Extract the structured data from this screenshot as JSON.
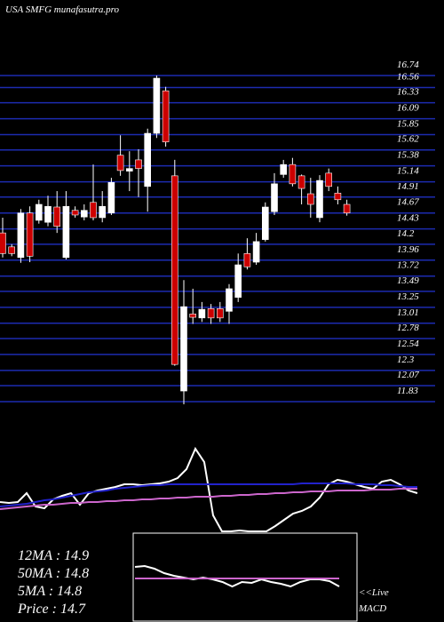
{
  "chart_data": {
    "type": "candlestick",
    "title": "USA SMFG munafasutra.pro",
    "ylim": [
      11.83,
      16.74
    ],
    "yticks": [
      16.74,
      16.56,
      16.33,
      16.09,
      15.85,
      15.62,
      15.38,
      15.14,
      14.91,
      14.67,
      14.43,
      14.2,
      13.96,
      13.72,
      13.49,
      13.25,
      13.01,
      12.78,
      12.54,
      12.3,
      12.07,
      11.83
    ],
    "grid": true,
    "grid_color": "#1c2bb0",
    "up_color": "#ffffff",
    "down_color": "#cc0000",
    "open": [
      14.37,
      14.16,
      14.0,
      14.67,
      14.56,
      14.53,
      14.76,
      14.0,
      14.71,
      14.61,
      14.83,
      14.6,
      14.67,
      15.54,
      15.3,
      15.47,
      15.07,
      15.87,
      16.51,
      15.23,
      11.99,
      13.15,
      13.09,
      13.23,
      13.23,
      13.19,
      13.4,
      14.06,
      13.93,
      14.27,
      14.69,
      15.25,
      15.4,
      15.23,
      14.96,
      14.6,
      15.27,
      14.97,
      14.8
    ],
    "high": [
      14.6,
      14.2,
      14.73,
      14.77,
      14.87,
      14.93,
      15.0,
      15.0,
      14.77,
      14.8,
      15.4,
      15.0,
      15.2,
      15.84,
      15.6,
      15.63,
      15.94,
      16.74,
      16.57,
      15.47,
      13.66,
      13.53,
      13.33,
      13.3,
      13.33,
      13.6,
      14.06,
      14.29,
      14.37,
      14.83,
      15.27,
      15.47,
      15.5,
      15.25,
      15.2,
      15.24,
      15.34,
      15.07,
      14.87
    ],
    "low": [
      14.0,
      14.02,
      13.92,
      13.93,
      14.51,
      14.47,
      14.37,
      13.97,
      14.6,
      14.56,
      14.56,
      14.53,
      14.64,
      15.23,
      15.0,
      14.91,
      14.69,
      15.8,
      15.67,
      12.37,
      11.79,
      13.0,
      13.03,
      13.0,
      13.03,
      13.0,
      13.33,
      13.82,
      13.89,
      14.24,
      14.64,
      15.2,
      15.07,
      14.8,
      14.6,
      14.53,
      15.0,
      14.8,
      14.63
    ],
    "close": [
      14.06,
      14.06,
      14.67,
      14.02,
      14.8,
      14.77,
      14.47,
      14.77,
      14.64,
      14.71,
      14.6,
      14.77,
      15.13,
      15.31,
      15.34,
      15.34,
      15.87,
      16.7,
      15.74,
      12.39,
      13.26,
      13.1,
      13.22,
      13.09,
      13.09,
      13.53,
      13.89,
      13.86,
      14.24,
      14.76,
      15.11,
      15.4,
      15.11,
      15.04,
      14.8,
      15.16,
      15.07,
      14.87,
      14.67
    ],
    "indicator_ylim": [
      0,
      100
    ],
    "indicators": [
      {
        "color": "#ffffff",
        "values": [
          35,
          34,
          35,
          45,
          30,
          28,
          38,
          42,
          45,
          32,
          45,
          48,
          50,
          52,
          55,
          55,
          54,
          55,
          56,
          58,
          62,
          72,
          95,
          80,
          20,
          2,
          2,
          3,
          2,
          2,
          2,
          8,
          15,
          22,
          25,
          30,
          40,
          55,
          60,
          58,
          55,
          52,
          50,
          58,
          60,
          55,
          48,
          45
        ]
      },
      {
        "color": "#2222cc",
        "values": [
          30,
          31,
          32,
          33,
          35,
          37,
          38,
          40,
          42,
          44,
          46,
          47,
          48,
          50,
          51,
          52,
          53,
          54,
          54,
          55,
          55,
          55,
          55,
          55,
          55,
          55,
          55,
          55,
          55,
          55,
          55,
          55,
          55,
          55,
          56,
          56,
          56,
          56,
          56,
          56,
          55,
          55,
          55,
          54,
          54,
          53,
          52,
          52
        ]
      },
      {
        "color": "#cc66cc",
        "values": [
          27,
          28,
          29,
          30,
          31,
          32,
          32,
          33,
          34,
          34,
          35,
          35,
          36,
          36,
          37,
          37,
          38,
          38,
          39,
          39,
          40,
          40,
          41,
          41,
          41,
          42,
          42,
          43,
          43,
          44,
          44,
          45,
          45,
          46,
          46,
          47,
          47,
          47,
          48,
          48,
          48,
          48,
          49,
          49,
          49,
          50,
          50,
          50
        ]
      }
    ],
    "macd_label": "<<Live",
    "macd_title": "MACD",
    "macd_ylim": [
      0,
      100
    ],
    "macd": [
      {
        "color": "#ffffff",
        "values": [
          62,
          63,
          60,
          55,
          52,
          50,
          48,
          50,
          48,
          45,
          40,
          45,
          44,
          48,
          45,
          43,
          40,
          45,
          48,
          48,
          46,
          40
        ]
      },
      {
        "color": "#cc66cc",
        "values": [
          49,
          49
        ]
      }
    ],
    "stats": [
      "12MA : 14.9",
      "50MA : 14.8",
      "5MA : 14.8",
      "Price   : 14.7"
    ]
  }
}
